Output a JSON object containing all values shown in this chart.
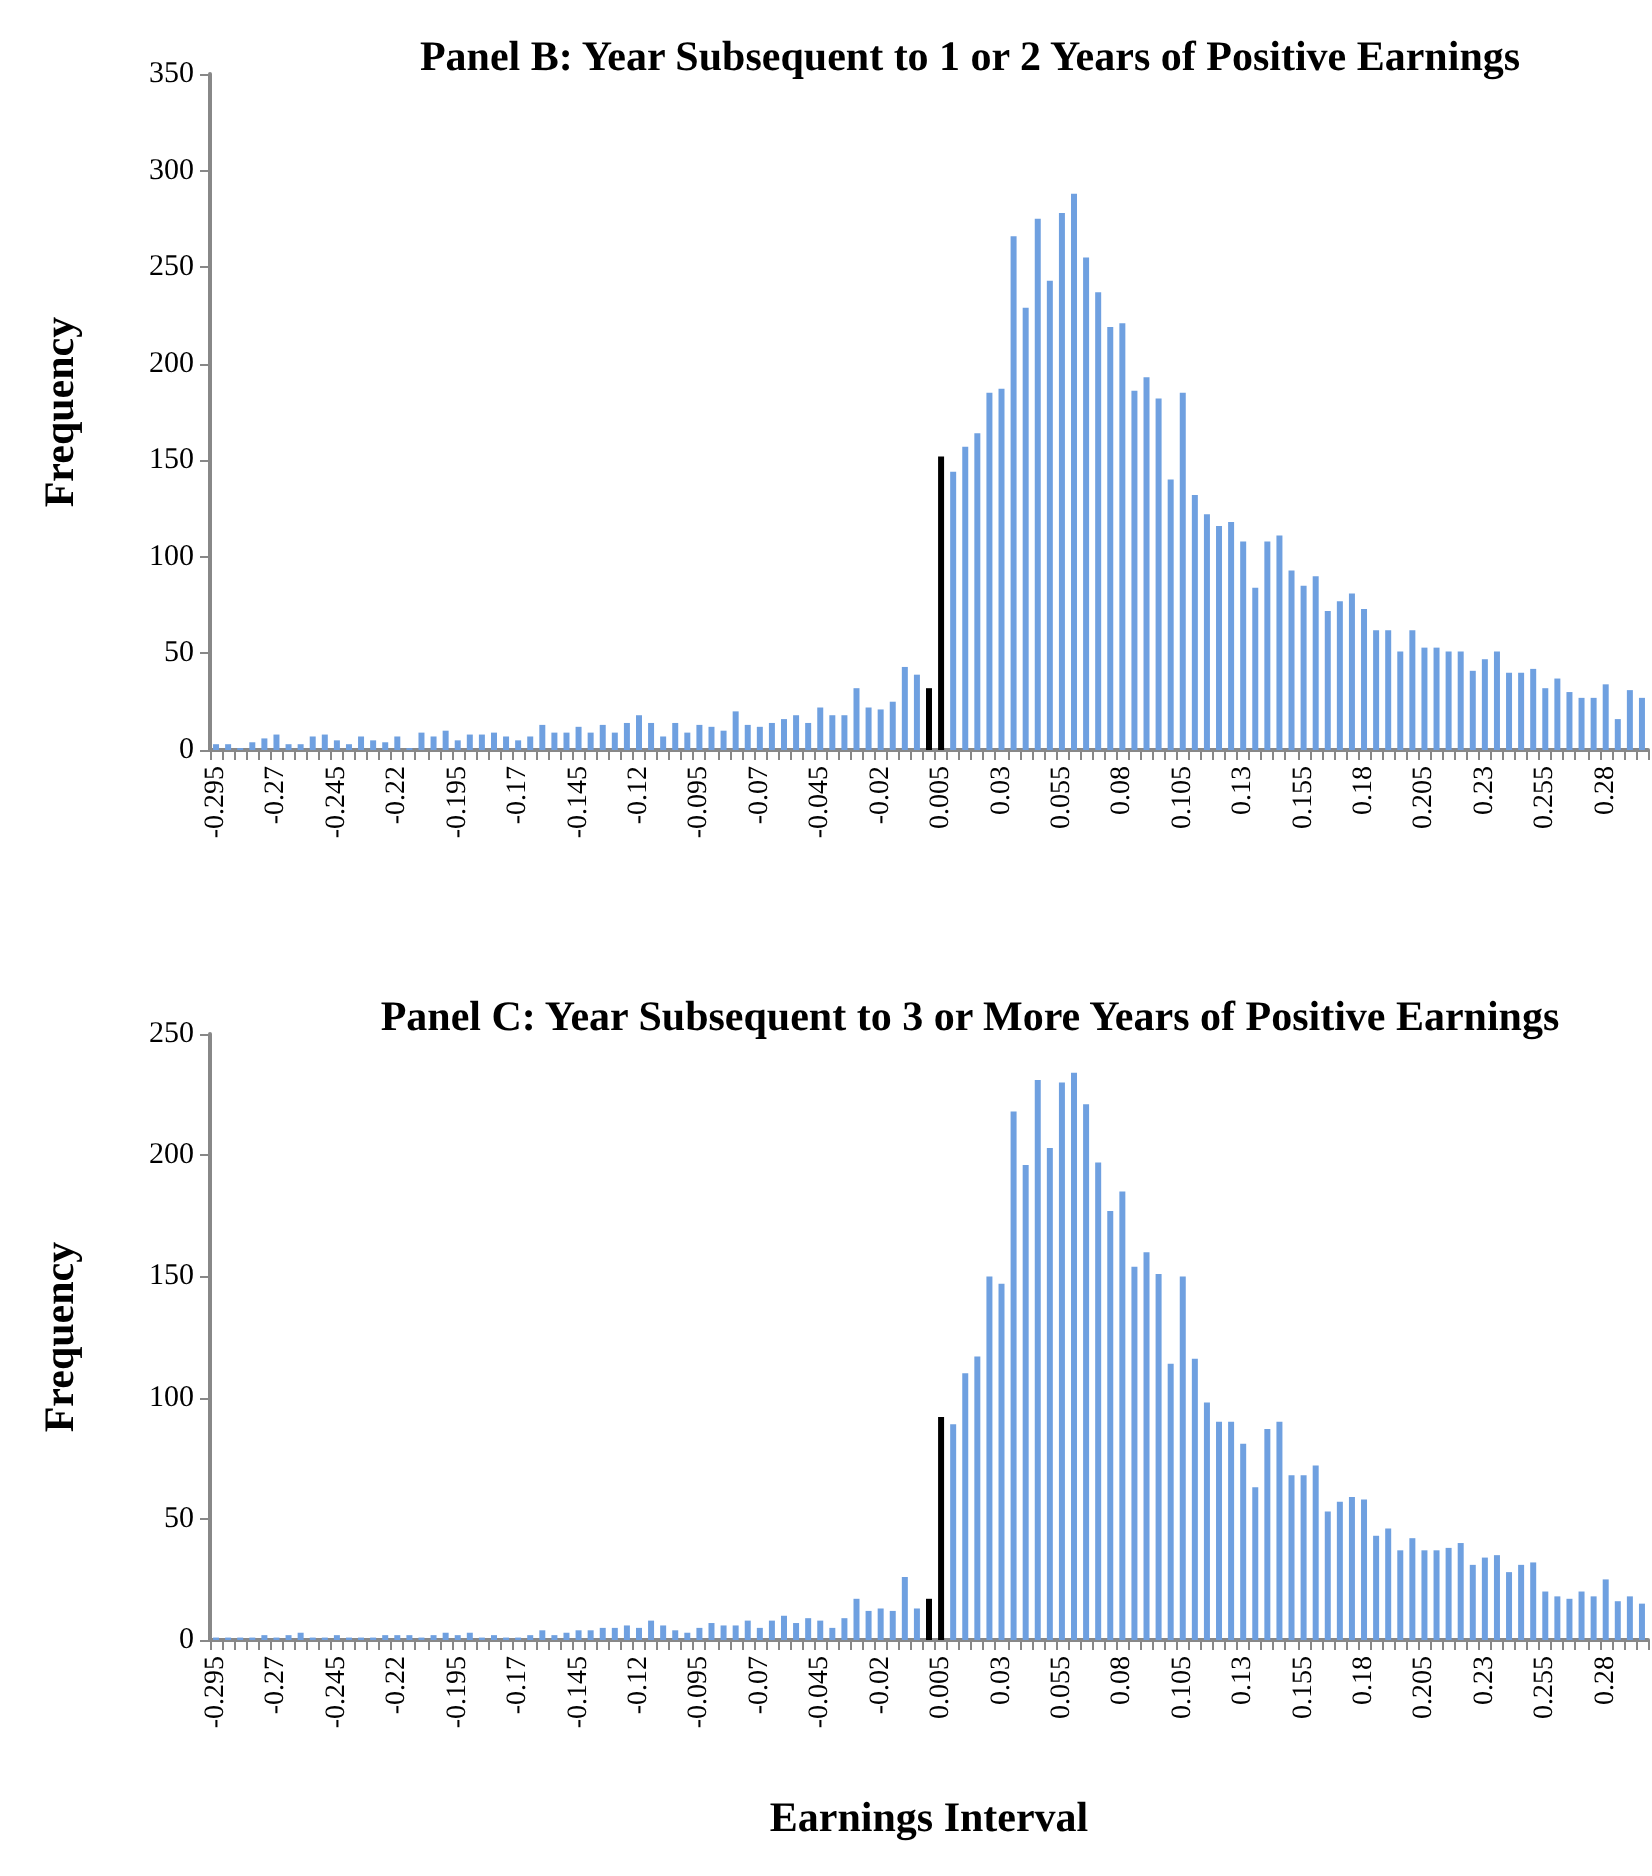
{
  "chart_data": [
    {
      "type": "bar",
      "title": "Panel B: Year Subsequent to 1 or 2 Years of Positive Earnings",
      "ylabel": "Frequency",
      "categories": [
        "-0.295",
        null,
        null,
        null,
        null,
        "-0.27",
        null,
        null,
        null,
        null,
        "-0.245",
        null,
        null,
        null,
        null,
        "-0.22",
        null,
        null,
        null,
        null,
        "-0.195",
        null,
        null,
        null,
        null,
        "-0.17",
        null,
        null,
        null,
        null,
        "-0.145",
        null,
        null,
        null,
        null,
        "-0.12",
        null,
        null,
        null,
        null,
        "-0.095",
        null,
        null,
        null,
        null,
        "-0.07",
        null,
        null,
        null,
        null,
        "-0.045",
        null,
        null,
        null,
        null,
        "-0.02",
        null,
        null,
        null,
        null,
        "0.005",
        null,
        null,
        null,
        null,
        "0.03",
        null,
        null,
        null,
        null,
        "0.055",
        null,
        null,
        null,
        null,
        "0.08",
        null,
        null,
        null,
        null,
        "0.105",
        null,
        null,
        null,
        null,
        "0.13",
        null,
        null,
        null,
        null,
        "0.155",
        null,
        null,
        null,
        null,
        "0.18",
        null,
        null,
        null,
        null,
        "0.205",
        null,
        null,
        null,
        null,
        "0.23",
        null,
        null,
        null,
        null,
        "0.255",
        null,
        null,
        null,
        null,
        "0.28",
        null,
        null,
        null
      ],
      "values": [
        3,
        3,
        1,
        4,
        6,
        8,
        3,
        3,
        7,
        8,
        5,
        3,
        7,
        5,
        4,
        7,
        1,
        9,
        7,
        10,
        5,
        8,
        8,
        9,
        7,
        5,
        7,
        13,
        9,
        9,
        12,
        9,
        13,
        9,
        14,
        18,
        14,
        7,
        14,
        9,
        13,
        12,
        10,
        20,
        13,
        12,
        14,
        16,
        18,
        14,
        22,
        18,
        18,
        32,
        22,
        21,
        25,
        43,
        39,
        32,
        152,
        144,
        157,
        164,
        185,
        187,
        266,
        229,
        275,
        243,
        278,
        288,
        255,
        237,
        219,
        221,
        186,
        193,
        182,
        140,
        185,
        132,
        122,
        116,
        118,
        108,
        84,
        108,
        111,
        93,
        85,
        90,
        72,
        77,
        81,
        73,
        62,
        62,
        51,
        62,
        53,
        53,
        51,
        51,
        41,
        47,
        51,
        40,
        40,
        42,
        32,
        37,
        30,
        27,
        27,
        34,
        16,
        31,
        27
      ],
      "colors": [
        "#6fa0e0",
        "#6fa0e0",
        "#6fa0e0",
        "#6fa0e0",
        "#6fa0e0",
        "#6fa0e0",
        "#6fa0e0",
        "#6fa0e0",
        "#6fa0e0",
        "#6fa0e0",
        "#6fa0e0",
        "#6fa0e0",
        "#6fa0e0",
        "#6fa0e0",
        "#6fa0e0",
        "#6fa0e0",
        "#6fa0e0",
        "#6fa0e0",
        "#6fa0e0",
        "#6fa0e0",
        "#6fa0e0",
        "#6fa0e0",
        "#6fa0e0",
        "#6fa0e0",
        "#6fa0e0",
        "#6fa0e0",
        "#6fa0e0",
        "#6fa0e0",
        "#6fa0e0",
        "#6fa0e0",
        "#6fa0e0",
        "#6fa0e0",
        "#6fa0e0",
        "#6fa0e0",
        "#6fa0e0",
        "#6fa0e0",
        "#6fa0e0",
        "#6fa0e0",
        "#6fa0e0",
        "#6fa0e0",
        "#6fa0e0",
        "#6fa0e0",
        "#6fa0e0",
        "#6fa0e0",
        "#6fa0e0",
        "#6fa0e0",
        "#6fa0e0",
        "#6fa0e0",
        "#6fa0e0",
        "#6fa0e0",
        "#6fa0e0",
        "#6fa0e0",
        "#6fa0e0",
        "#6fa0e0",
        "#6fa0e0",
        "#6fa0e0",
        "#6fa0e0",
        "#6fa0e0",
        "#6fa0e0",
        "#000000",
        "#000000",
        "#6fa0e0",
        "#6fa0e0",
        "#6fa0e0",
        "#6fa0e0",
        "#6fa0e0",
        "#6fa0e0",
        "#6fa0e0",
        "#6fa0e0",
        "#6fa0e0",
        "#6fa0e0",
        "#6fa0e0",
        "#6fa0e0",
        "#6fa0e0",
        "#6fa0e0",
        "#6fa0e0",
        "#6fa0e0",
        "#6fa0e0",
        "#6fa0e0",
        "#6fa0e0",
        "#6fa0e0",
        "#6fa0e0",
        "#6fa0e0",
        "#6fa0e0",
        "#6fa0e0",
        "#6fa0e0",
        "#6fa0e0",
        "#6fa0e0",
        "#6fa0e0",
        "#6fa0e0",
        "#6fa0e0",
        "#6fa0e0",
        "#6fa0e0",
        "#6fa0e0",
        "#6fa0e0",
        "#6fa0e0",
        "#6fa0e0",
        "#6fa0e0",
        "#6fa0e0",
        "#6fa0e0",
        "#6fa0e0",
        "#6fa0e0",
        "#6fa0e0",
        "#6fa0e0",
        "#6fa0e0",
        "#6fa0e0",
        "#6fa0e0",
        "#6fa0e0",
        "#6fa0e0",
        "#6fa0e0",
        "#6fa0e0",
        "#6fa0e0",
        "#6fa0e0",
        "#6fa0e0",
        "#6fa0e0",
        "#6fa0e0",
        "#6fa0e0",
        "#6fa0e0",
        "#6fa0e0"
      ],
      "ylim": [
        0,
        350
      ],
      "yticks": [
        0,
        50,
        100,
        150,
        200,
        250,
        300,
        350
      ]
    },
    {
      "type": "bar",
      "title": "Panel C: Year Subsequent to 3 or More Years of Positive Earnings",
      "ylabel": "Frequency",
      "xlabel": "Earnings Interval",
      "categories": [
        "-0.295",
        null,
        null,
        null,
        null,
        "-0.27",
        null,
        null,
        null,
        null,
        "-0.245",
        null,
        null,
        null,
        null,
        "-0.22",
        null,
        null,
        null,
        null,
        "-0.195",
        null,
        null,
        null,
        null,
        "-0.17",
        null,
        null,
        null,
        null,
        "-0.145",
        null,
        null,
        null,
        null,
        "-0.12",
        null,
        null,
        null,
        null,
        "-0.095",
        null,
        null,
        null,
        null,
        "-0.07",
        null,
        null,
        null,
        null,
        "-0.045",
        null,
        null,
        null,
        null,
        "-0.02",
        null,
        null,
        null,
        null,
        "0.005",
        null,
        null,
        null,
        null,
        "0.03",
        null,
        null,
        null,
        null,
        "0.055",
        null,
        null,
        null,
        null,
        "0.08",
        null,
        null,
        null,
        null,
        "0.105",
        null,
        null,
        null,
        null,
        "0.13",
        null,
        null,
        null,
        null,
        "0.155",
        null,
        null,
        null,
        null,
        "0.18",
        null,
        null,
        null,
        null,
        "0.205",
        null,
        null,
        null,
        null,
        "0.23",
        null,
        null,
        null,
        null,
        "0.255",
        null,
        null,
        null,
        null,
        "0.28",
        null,
        null,
        null
      ],
      "values": [
        1,
        1,
        1,
        1,
        2,
        1,
        2,
        3,
        1,
        1,
        2,
        1,
        1,
        1,
        2,
        2,
        2,
        1,
        2,
        3,
        2,
        3,
        1,
        2,
        1,
        1,
        2,
        4,
        2,
        3,
        4,
        4,
        5,
        5,
        6,
        5,
        8,
        6,
        4,
        3,
        5,
        7,
        6,
        6,
        8,
        5,
        8,
        10,
        7,
        9,
        8,
        5,
        9,
        17,
        12,
        13,
        12,
        26,
        13,
        17,
        92,
        89,
        110,
        117,
        150,
        147,
        218,
        196,
        231,
        203,
        230,
        234,
        221,
        197,
        177,
        185,
        154,
        160,
        151,
        114,
        150,
        116,
        98,
        90,
        90,
        81,
        63,
        87,
        90,
        68,
        68,
        72,
        53,
        57,
        59,
        58,
        43,
        46,
        37,
        42,
        37,
        37,
        38,
        40,
        31,
        34,
        35,
        28,
        31,
        32,
        20,
        18,
        17,
        20,
        18,
        25,
        16,
        18,
        15
      ],
      "colors": [
        "#6fa0e0",
        "#6fa0e0",
        "#6fa0e0",
        "#6fa0e0",
        "#6fa0e0",
        "#6fa0e0",
        "#6fa0e0",
        "#6fa0e0",
        "#6fa0e0",
        "#6fa0e0",
        "#6fa0e0",
        "#6fa0e0",
        "#6fa0e0",
        "#6fa0e0",
        "#6fa0e0",
        "#6fa0e0",
        "#6fa0e0",
        "#6fa0e0",
        "#6fa0e0",
        "#6fa0e0",
        "#6fa0e0",
        "#6fa0e0",
        "#6fa0e0",
        "#6fa0e0",
        "#6fa0e0",
        "#6fa0e0",
        "#6fa0e0",
        "#6fa0e0",
        "#6fa0e0",
        "#6fa0e0",
        "#6fa0e0",
        "#6fa0e0",
        "#6fa0e0",
        "#6fa0e0",
        "#6fa0e0",
        "#6fa0e0",
        "#6fa0e0",
        "#6fa0e0",
        "#6fa0e0",
        "#6fa0e0",
        "#6fa0e0",
        "#6fa0e0",
        "#6fa0e0",
        "#6fa0e0",
        "#6fa0e0",
        "#6fa0e0",
        "#6fa0e0",
        "#6fa0e0",
        "#6fa0e0",
        "#6fa0e0",
        "#6fa0e0",
        "#6fa0e0",
        "#6fa0e0",
        "#6fa0e0",
        "#6fa0e0",
        "#6fa0e0",
        "#6fa0e0",
        "#6fa0e0",
        "#6fa0e0",
        "#000000",
        "#000000",
        "#6fa0e0",
        "#6fa0e0",
        "#6fa0e0",
        "#6fa0e0",
        "#6fa0e0",
        "#6fa0e0",
        "#6fa0e0",
        "#6fa0e0",
        "#6fa0e0",
        "#6fa0e0",
        "#6fa0e0",
        "#6fa0e0",
        "#6fa0e0",
        "#6fa0e0",
        "#6fa0e0",
        "#6fa0e0",
        "#6fa0e0",
        "#6fa0e0",
        "#6fa0e0",
        "#6fa0e0",
        "#6fa0e0",
        "#6fa0e0",
        "#6fa0e0",
        "#6fa0e0",
        "#6fa0e0",
        "#6fa0e0",
        "#6fa0e0",
        "#6fa0e0",
        "#6fa0e0",
        "#6fa0e0",
        "#6fa0e0",
        "#6fa0e0",
        "#6fa0e0",
        "#6fa0e0",
        "#6fa0e0",
        "#6fa0e0",
        "#6fa0e0",
        "#6fa0e0",
        "#6fa0e0",
        "#6fa0e0",
        "#6fa0e0",
        "#6fa0e0",
        "#6fa0e0",
        "#6fa0e0",
        "#6fa0e0",
        "#6fa0e0",
        "#6fa0e0",
        "#6fa0e0",
        "#6fa0e0",
        "#6fa0e0",
        "#6fa0e0",
        "#6fa0e0",
        "#6fa0e0",
        "#6fa0e0",
        "#6fa0e0",
        "#6fa0e0",
        "#6fa0e0",
        "#6fa0e0"
      ],
      "ylim": [
        0,
        250
      ],
      "yticks": [
        0,
        50,
        100,
        150,
        200,
        250
      ]
    }
  ]
}
